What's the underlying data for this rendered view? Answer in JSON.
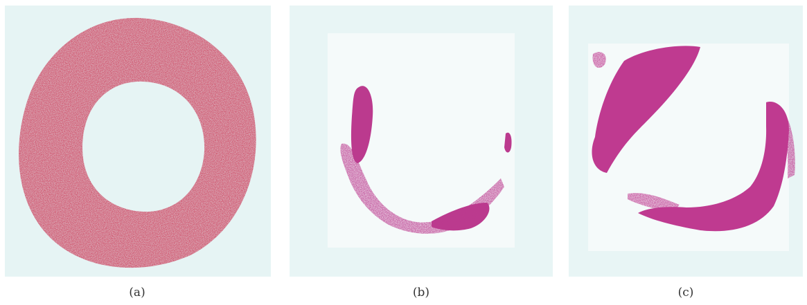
{
  "panels": [
    {
      "id": "a",
      "caption": "(a)",
      "stain_color": "#d0334f",
      "background": "#e6f4f4"
    },
    {
      "id": "b",
      "caption": "(b)",
      "stain_color": "#bb3a8e",
      "background": "#e8f5f5"
    },
    {
      "id": "c",
      "caption": "(c)",
      "stain_color": "#bf3a90",
      "background": "#e8f5f5"
    }
  ]
}
